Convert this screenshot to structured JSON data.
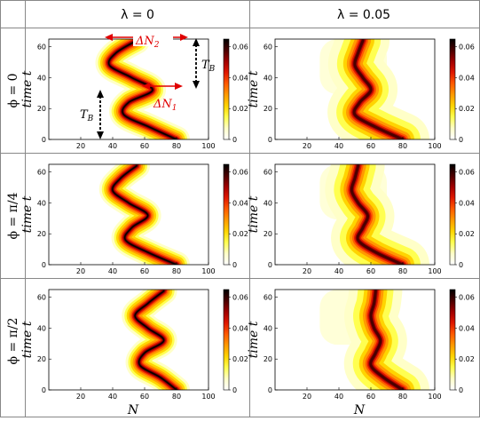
{
  "figure": {
    "column_headers": [
      "λ = 0",
      "λ = 0.05"
    ],
    "row_headers": [
      "ϕ = 0",
      "ϕ = π/4",
      "ϕ = π/2"
    ],
    "xlabel": "N",
    "ylabel": "time  t",
    "annotations": {
      "delta_n2": "ΔN",
      "delta_n2_sub": "2",
      "delta_n1": "ΔN",
      "delta_n1_sub": "1",
      "tb_upper": "T",
      "tb_upper_sub": "B",
      "tb_lower": "T",
      "tb_lower_sub": "B"
    },
    "colors": {
      "colormap": [
        "#ffffff",
        "#ffffc8",
        "#ffff50",
        "#ffd400",
        "#ff9a00",
        "#ff5a00",
        "#e01800",
        "#a00000",
        "#4a0000",
        "#000000"
      ],
      "arrow_red": "#e00000",
      "arrow_black": "#000000"
    }
  },
  "chart_data": [
    {
      "type": "heatmap",
      "row": "ϕ = 0",
      "column": "λ = 0",
      "xlim": [
        0,
        100
      ],
      "ylim": [
        0,
        65
      ],
      "xticks": [
        20,
        40,
        60,
        80,
        100
      ],
      "yticks": [
        0,
        20,
        40,
        60
      ],
      "colorbar": {
        "range": [
          0,
          0.065
        ],
        "ticks": [
          0,
          0.02,
          0.04,
          0.06
        ]
      },
      "ridge": {
        "t": [
          0,
          8,
          16,
          24,
          32,
          40,
          48,
          56,
          64
        ],
        "N": [
          80,
          63,
          47,
          50,
          65,
          52,
          38,
          42,
          55
        ]
      },
      "lambda": 0,
      "phi": 0
    },
    {
      "type": "heatmap",
      "row": "ϕ = 0",
      "column": "λ = 0.05",
      "xlim": [
        0,
        100
      ],
      "ylim": [
        0,
        65
      ],
      "xticks": [
        20,
        40,
        60,
        80,
        100
      ],
      "yticks": [
        0,
        20,
        40,
        60
      ],
      "colorbar": {
        "range": [
          0,
          0.065
        ],
        "ticks": [
          0,
          0.02,
          0.04,
          0.06
        ]
      },
      "ridge": {
        "t": [
          0,
          8,
          16,
          24,
          32,
          40,
          48,
          56,
          64
        ],
        "N": [
          80,
          63,
          50,
          53,
          60,
          55,
          50,
          52,
          55
        ]
      },
      "lambda": 0.05,
      "phi": 0
    },
    {
      "type": "heatmap",
      "row": "ϕ = π/4",
      "column": "λ = 0",
      "xlim": [
        0,
        100
      ],
      "ylim": [
        0,
        65
      ],
      "xticks": [
        20,
        40,
        60,
        80,
        100
      ],
      "yticks": [
        0,
        20,
        40,
        60
      ],
      "colorbar": {
        "range": [
          0,
          0.065
        ],
        "ticks": [
          0,
          0.02,
          0.04,
          0.06
        ]
      },
      "ridge": {
        "t": [
          0,
          8,
          16,
          24,
          32,
          40,
          48,
          56,
          64
        ],
        "N": [
          80,
          62,
          48,
          52,
          62,
          50,
          40,
          45,
          55
        ]
      },
      "lambda": 0,
      "phi": "π/4"
    },
    {
      "type": "heatmap",
      "row": "ϕ = π/4",
      "column": "λ = 0.05",
      "xlim": [
        0,
        100
      ],
      "ylim": [
        0,
        65
      ],
      "xticks": [
        20,
        40,
        60,
        80,
        100
      ],
      "yticks": [
        0,
        20,
        40,
        60
      ],
      "colorbar": {
        "range": [
          0,
          0.065
        ],
        "ticks": [
          0,
          0.02,
          0.04,
          0.06
        ]
      },
      "ridge": {
        "t": [
          0,
          8,
          16,
          24,
          32,
          40,
          48,
          56,
          64
        ],
        "N": [
          80,
          63,
          52,
          55,
          58,
          52,
          48,
          50,
          52
        ]
      },
      "lambda": 0.05,
      "phi": "π/4"
    },
    {
      "type": "heatmap",
      "row": "ϕ = π/2",
      "column": "λ = 0",
      "xlim": [
        0,
        100
      ],
      "ylim": [
        0,
        65
      ],
      "xticks": [
        20,
        40,
        60,
        80,
        100
      ],
      "yticks": [
        0,
        20,
        40,
        60
      ],
      "colorbar": {
        "range": [
          0,
          0.065
        ],
        "ticks": [
          0,
          0.02,
          0.04,
          0.06
        ]
      },
      "ridge": {
        "t": [
          0,
          8,
          16,
          24,
          32,
          40,
          48,
          56,
          64
        ],
        "N": [
          80,
          70,
          57,
          60,
          72,
          62,
          54,
          62,
          72
        ]
      },
      "lambda": 0,
      "phi": "π/2"
    },
    {
      "type": "heatmap",
      "row": "ϕ = π/2",
      "column": "λ = 0.05",
      "xlim": [
        0,
        100
      ],
      "ylim": [
        0,
        65
      ],
      "xticks": [
        20,
        40,
        60,
        80,
        100
      ],
      "yticks": [
        0,
        20,
        40,
        60
      ],
      "colorbar": {
        "range": [
          0,
          0.065
        ],
        "ticks": [
          0,
          0.02,
          0.04,
          0.06
        ]
      },
      "ridge": {
        "t": [
          0,
          8,
          16,
          24,
          32,
          40,
          48,
          56,
          64
        ],
        "N": [
          80,
          68,
          60,
          63,
          66,
          62,
          60,
          62,
          63
        ]
      },
      "lambda": 0.05,
      "phi": "π/2"
    }
  ]
}
